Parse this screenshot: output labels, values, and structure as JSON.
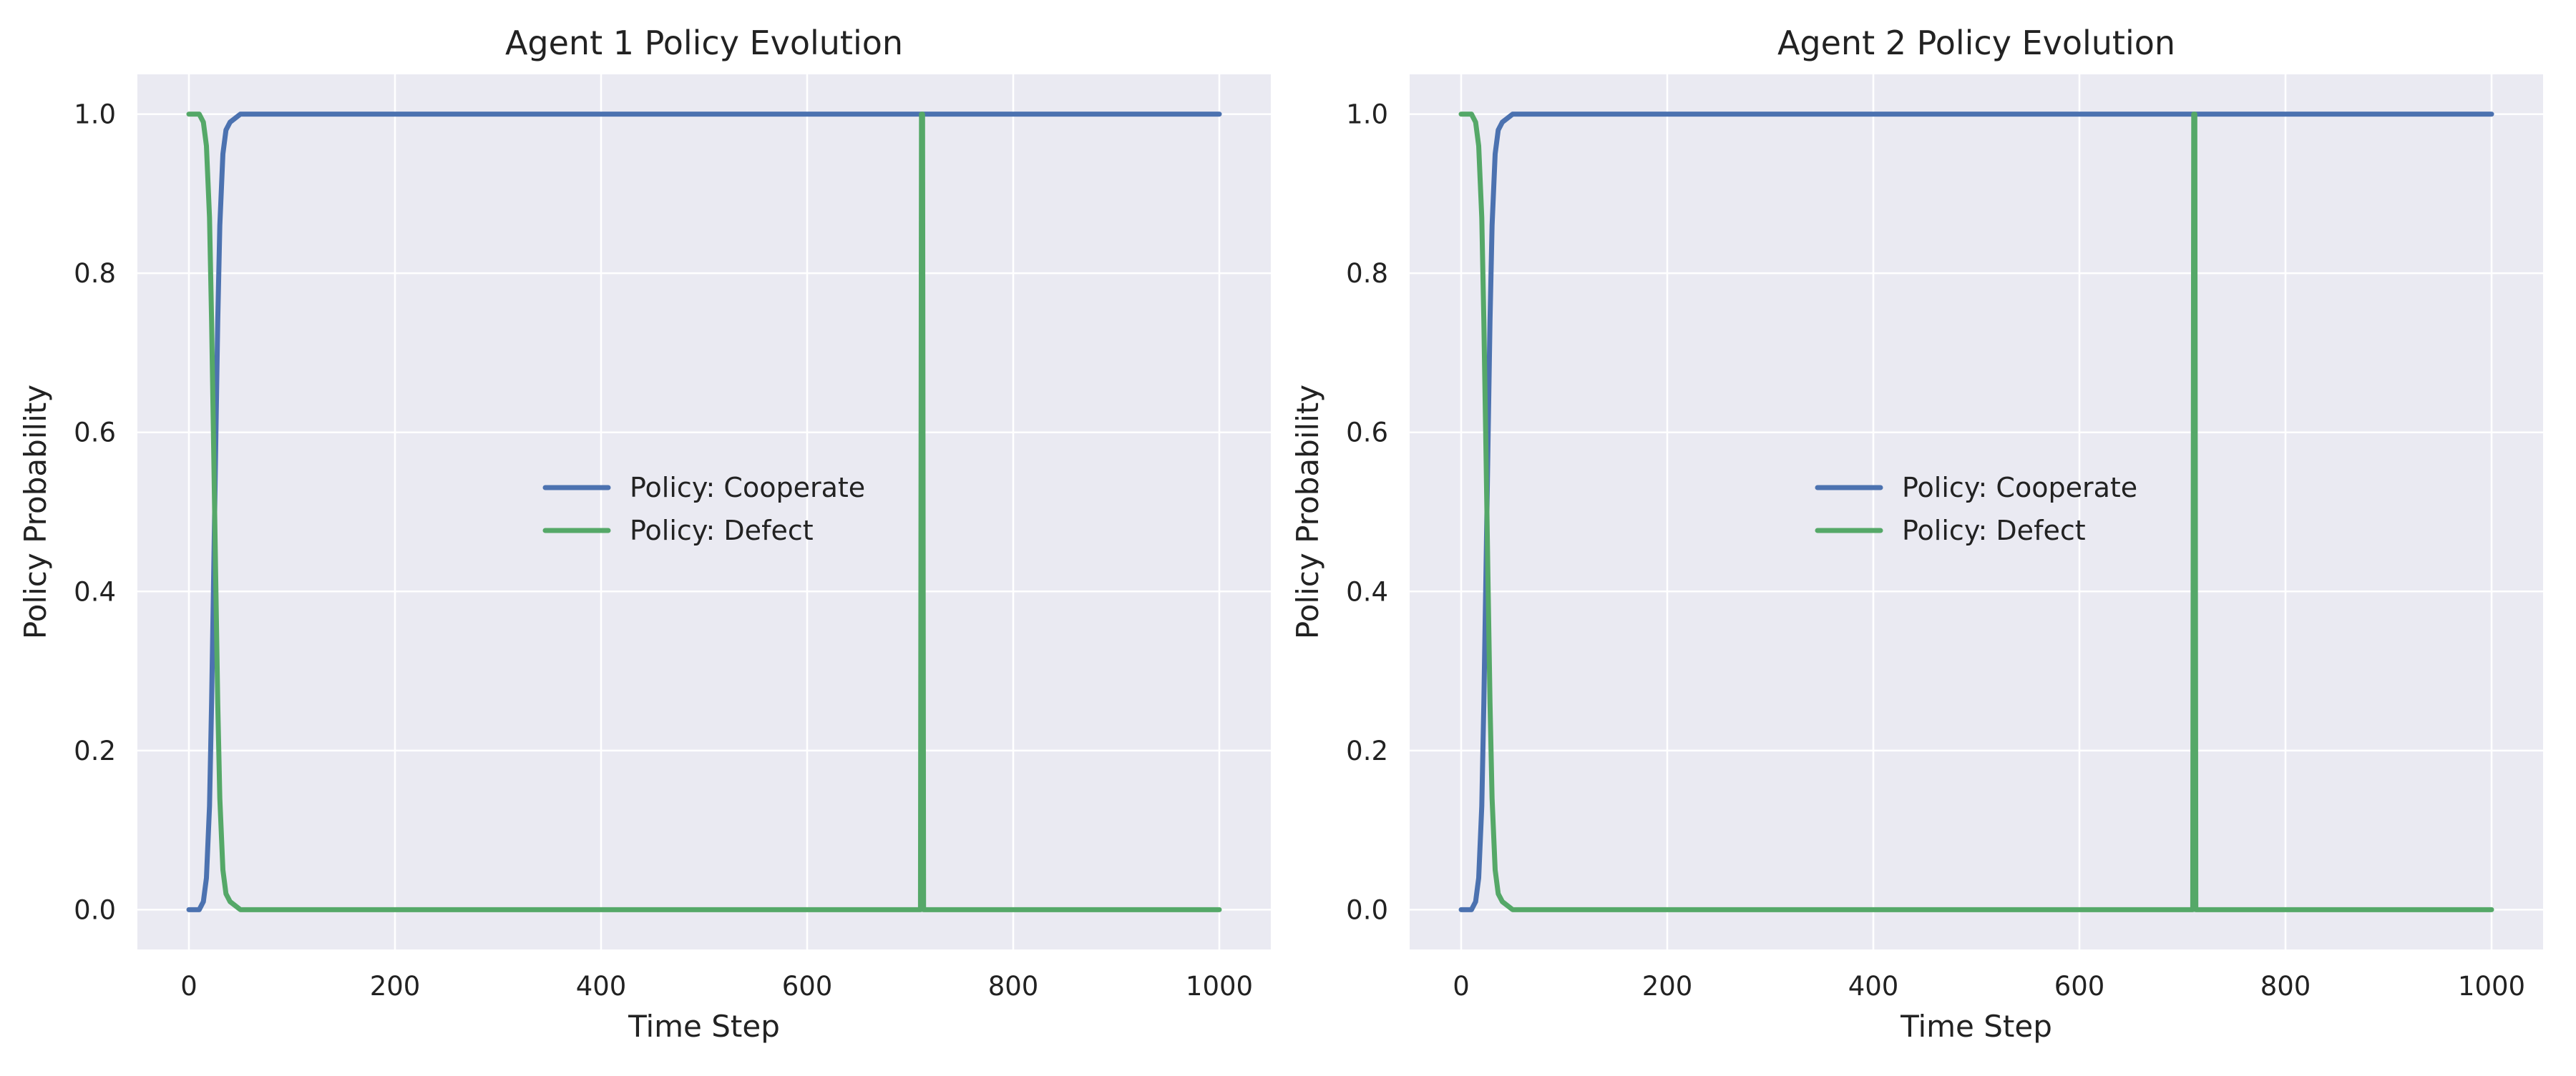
{
  "colors": {
    "background": "#ffffff",
    "plot_background": "#eaeaf2",
    "grid": "#ffffff",
    "cooperate": "#4c72b0",
    "defect": "#55a868"
  },
  "chart_data": [
    {
      "type": "line",
      "title": "Agent 1 Policy Evolution",
      "xlabel": "Time Step",
      "ylabel": "Policy Probability",
      "xlim": [
        -50,
        1050
      ],
      "ylim": [
        -0.05,
        1.05
      ],
      "xticks": [
        0,
        200,
        400,
        600,
        800,
        1000
      ],
      "yticks": [
        0.0,
        0.2,
        0.4,
        0.6,
        0.8,
        1.0
      ],
      "xtick_labels": [
        "0",
        "200",
        "400",
        "600",
        "800",
        "1000"
      ],
      "ytick_labels": [
        "0.0",
        "0.2",
        "0.4",
        "0.6",
        "0.8",
        "1.0"
      ],
      "grid": true,
      "legend_position": "center",
      "legend": [
        "Policy: Cooperate",
        "Policy: Defect"
      ],
      "series": [
        {
          "name": "Policy: Cooperate",
          "x": [
            0,
            10,
            14,
            17,
            20,
            22,
            24,
            26,
            28,
            30,
            33,
            36,
            40,
            50,
            60,
            100,
            1000
          ],
          "values": [
            0.0,
            0.0,
            0.01,
            0.04,
            0.13,
            0.26,
            0.42,
            0.58,
            0.74,
            0.86,
            0.95,
            0.98,
            0.99,
            1.0,
            1.0,
            1.0,
            1.0
          ]
        },
        {
          "name": "Policy: Defect",
          "x": [
            0,
            10,
            14,
            17,
            20,
            22,
            24,
            26,
            28,
            30,
            33,
            36,
            40,
            50,
            60,
            710,
            711,
            712,
            713,
            1000
          ],
          "values": [
            1.0,
            1.0,
            0.99,
            0.96,
            0.87,
            0.74,
            0.58,
            0.42,
            0.26,
            0.14,
            0.05,
            0.02,
            0.01,
            0.0,
            0.0,
            0.0,
            1.0,
            1.0,
            0.0,
            0.0
          ]
        }
      ]
    },
    {
      "type": "line",
      "title": "Agent 2 Policy Evolution",
      "xlabel": "Time Step",
      "ylabel": "Policy Probability",
      "xlim": [
        -50,
        1050
      ],
      "ylim": [
        -0.05,
        1.05
      ],
      "xticks": [
        0,
        200,
        400,
        600,
        800,
        1000
      ],
      "yticks": [
        0.0,
        0.2,
        0.4,
        0.6,
        0.8,
        1.0
      ],
      "xtick_labels": [
        "0",
        "200",
        "400",
        "600",
        "800",
        "1000"
      ],
      "ytick_labels": [
        "0.0",
        "0.2",
        "0.4",
        "0.6",
        "0.8",
        "1.0"
      ],
      "grid": true,
      "legend_position": "center",
      "legend": [
        "Policy: Cooperate",
        "Policy: Defect"
      ],
      "series": [
        {
          "name": "Policy: Cooperate",
          "x": [
            0,
            10,
            14,
            17,
            20,
            22,
            24,
            26,
            28,
            30,
            33,
            36,
            40,
            50,
            60,
            100,
            1000
          ],
          "values": [
            0.0,
            0.0,
            0.01,
            0.04,
            0.13,
            0.26,
            0.42,
            0.58,
            0.74,
            0.86,
            0.95,
            0.98,
            0.99,
            1.0,
            1.0,
            1.0,
            1.0
          ]
        },
        {
          "name": "Policy: Defect",
          "x": [
            0,
            10,
            14,
            17,
            20,
            22,
            24,
            26,
            28,
            30,
            33,
            36,
            40,
            50,
            60,
            710,
            711,
            712,
            713,
            1000
          ],
          "values": [
            1.0,
            1.0,
            0.99,
            0.96,
            0.87,
            0.74,
            0.58,
            0.42,
            0.26,
            0.14,
            0.05,
            0.02,
            0.01,
            0.0,
            0.0,
            0.0,
            1.0,
            1.0,
            0.0,
            0.0
          ]
        }
      ]
    }
  ]
}
